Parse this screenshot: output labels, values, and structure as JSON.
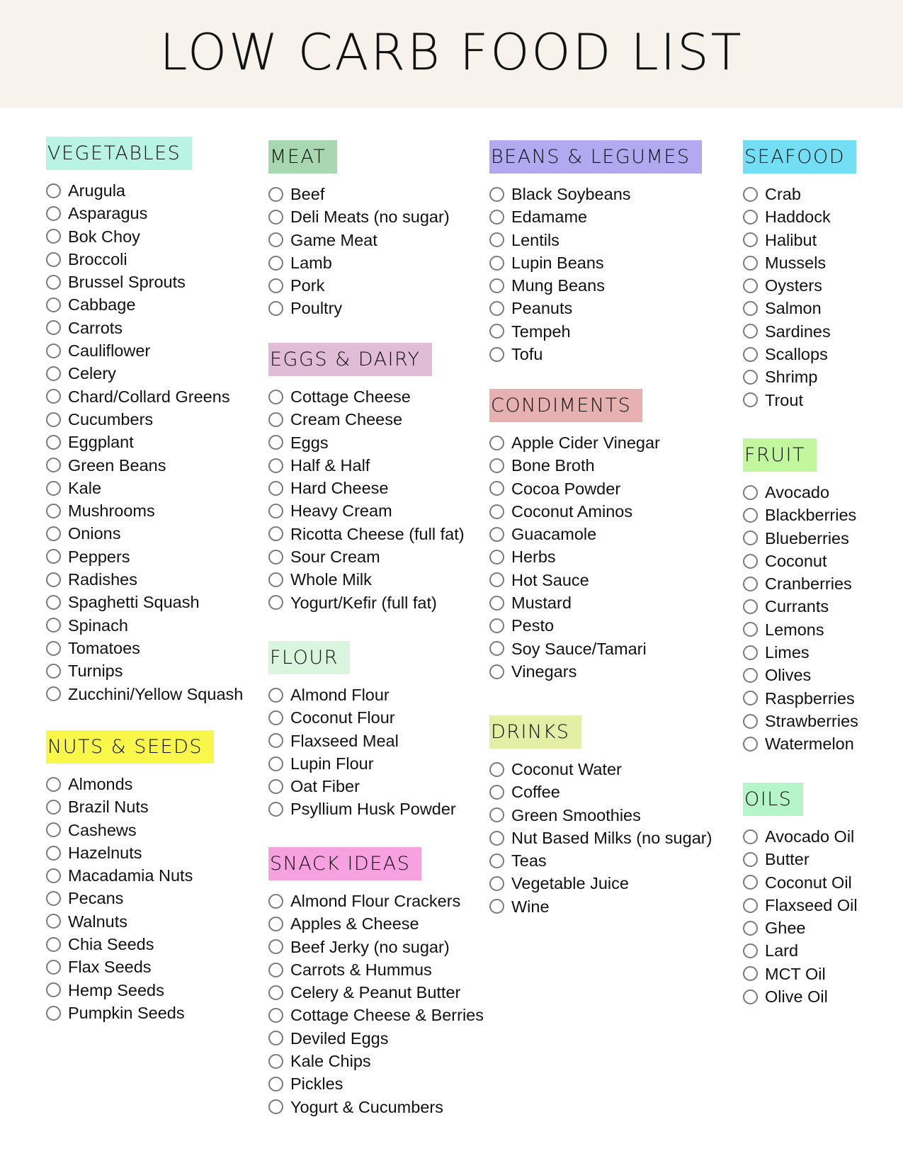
{
  "title": "LOW CARB FOOD LIST",
  "sections": [
    {
      "key": "vegetables",
      "title": "VEGETABLES",
      "color": "#b9f3e1",
      "items": [
        "Arugula",
        "Asparagus",
        "Bok Choy",
        "Broccoli",
        "Brussel Sprouts",
        "Cabbage",
        "Carrots",
        "Cauliflower",
        "Celery",
        "Chard/Collard Greens",
        "Cucumbers",
        "Eggplant",
        "Green Beans",
        "Kale",
        "Mushrooms",
        "Onions",
        "Peppers",
        "Radishes",
        "Spaghetti Squash",
        "Spinach",
        "Tomatoes",
        "Turnips",
        "Zucchini/Yellow Squash"
      ]
    },
    {
      "key": "nuts-seeds",
      "title": "NUTS & SEEDS",
      "color": "#f9f84a",
      "items": [
        "Almonds",
        "Brazil Nuts",
        "Cashews",
        "Hazelnuts",
        "Macadamia Nuts",
        "Pecans",
        "Walnuts",
        "Chia Seeds",
        "Flax Seeds",
        "Hemp Seeds",
        "Pumpkin Seeds"
      ]
    },
    {
      "key": "meat",
      "title": "MEAT",
      "color": "#a8d8b0",
      "items": [
        "Beef",
        "Deli Meats (no sugar)",
        "Game Meat",
        "Lamb",
        "Pork",
        "Poultry"
      ]
    },
    {
      "key": "eggs-dairy",
      "title": "EGGS & DAIRY",
      "color": "#e0bcd6",
      "items": [
        "Cottage Cheese",
        "Cream Cheese",
        "Eggs",
        "Half & Half",
        "Hard Cheese",
        "Heavy Cream",
        "Ricotta Cheese (full fat)",
        "Sour Cream",
        "Whole Milk",
        "Yogurt/Kefir (full fat)"
      ]
    },
    {
      "key": "flour",
      "title": "FLOUR",
      "color": "#d9f5dd",
      "items": [
        "Almond Flour",
        "Coconut Flour",
        "Flaxseed Meal",
        "Lupin Flour",
        "Oat Fiber",
        "Psyllium Husk Powder"
      ]
    },
    {
      "key": "snack-ideas",
      "title": "SNACK IDEAS",
      "color": "#f7a1e0",
      "items": [
        "Almond Flour Crackers",
        "Apples & Cheese",
        "Beef Jerky (no sugar)",
        "Carrots & Hummus",
        "Celery & Peanut Butter",
        "Cottage Cheese & Berries",
        "Deviled Eggs",
        "Kale Chips",
        "Pickles",
        "Yogurt & Cucumbers"
      ]
    },
    {
      "key": "beans-legumes",
      "title": "BEANS & LEGUMES",
      "color": "#b3a9f0",
      "items": [
        "Black Soybeans",
        "Edamame",
        "Lentils",
        "Lupin Beans",
        "Mung Beans",
        "Peanuts",
        "Tempeh",
        "Tofu"
      ]
    },
    {
      "key": "condiments",
      "title": "CONDIMENTS",
      "color": "#e8b1b1",
      "items": [
        "Apple Cider Vinegar",
        "Bone Broth",
        "Cocoa Powder",
        "Coconut Aminos",
        "Guacamole",
        "Herbs",
        "Hot Sauce",
        "Mustard",
        "Pesto",
        "Soy Sauce/Tamari",
        "Vinegars"
      ]
    },
    {
      "key": "drinks",
      "title": "DRINKS",
      "color": "#e2efa4",
      "items": [
        "Coconut Water",
        "Coffee",
        "Green Smoothies",
        "Nut Based Milks (no sugar)",
        "Teas",
        "Vegetable Juice",
        "Wine"
      ]
    },
    {
      "key": "seafood",
      "title": "SEAFOOD",
      "color": "#72dff5",
      "items": [
        "Crab",
        "Haddock",
        "Halibut",
        "Mussels",
        "Oysters",
        "Salmon",
        "Sardines",
        "Scallops",
        "Shrimp",
        "Trout"
      ]
    },
    {
      "key": "fruit",
      "title": "FRUIT",
      "color": "#c2f7a0",
      "items": [
        "Avocado",
        "Blackberries",
        "Blueberries",
        "Coconut",
        "Cranberries",
        "Currants",
        "Lemons",
        "Limes",
        "Olives",
        "Raspberries",
        "Strawberries",
        "Watermelon"
      ]
    },
    {
      "key": "oils",
      "title": "OILS",
      "color": "#b6f5c8",
      "items": [
        "Avocado Oil",
        "Butter",
        "Coconut Oil",
        "Flaxseed Oil",
        "Ghee",
        "Lard",
        "MCT Oil",
        "Olive Oil"
      ]
    }
  ]
}
